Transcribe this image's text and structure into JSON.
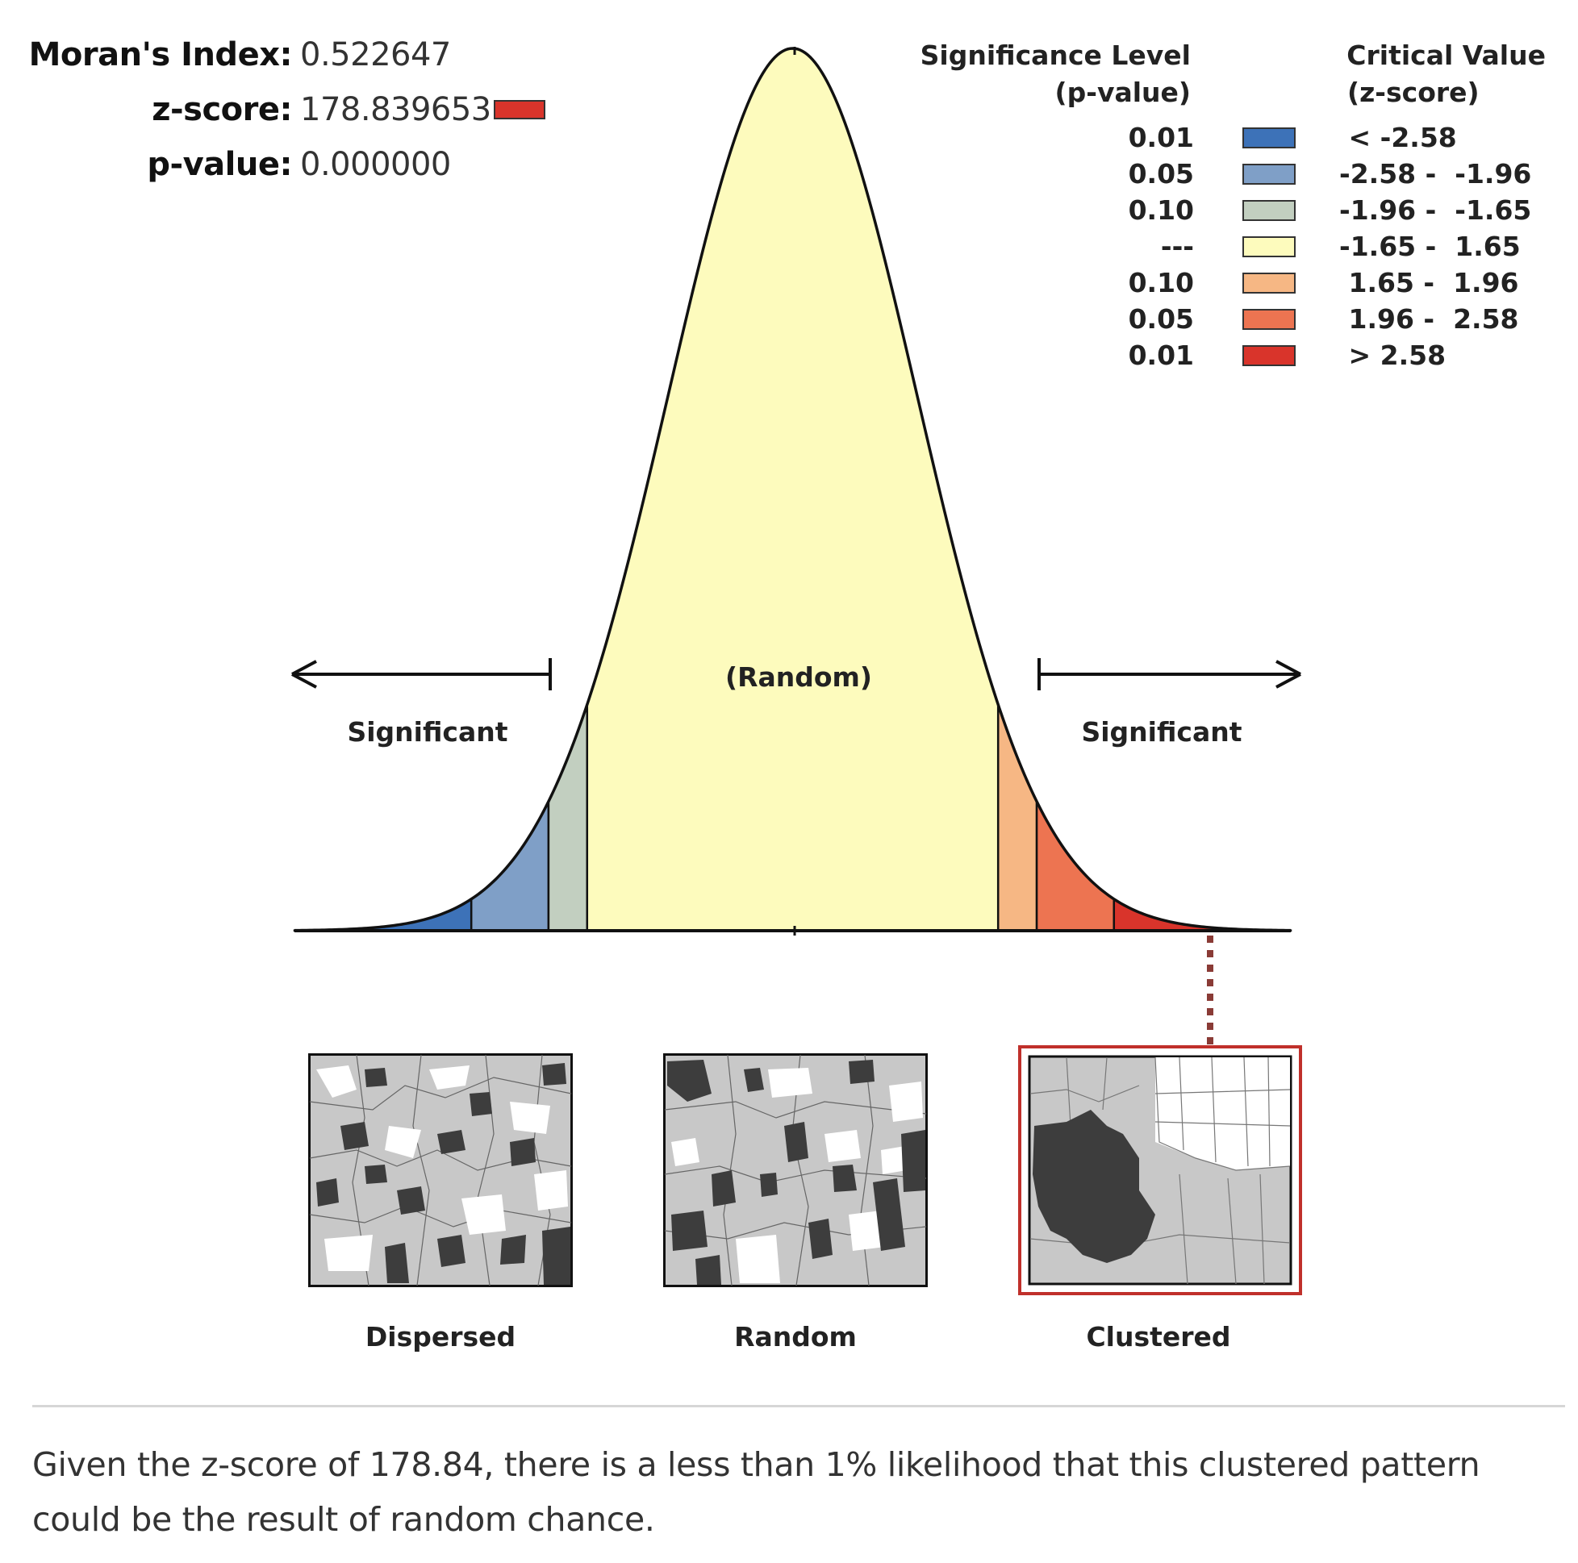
{
  "stats": {
    "index_label": "Moran's Index:",
    "index_value": "0.522647",
    "z_label": "z-score:",
    "z_value": "178.839653",
    "p_label": "p-value:",
    "p_value": "0.000000",
    "z_swatch_color": "#d9342b"
  },
  "legend": {
    "sig_header_line1": "Significance Level",
    "sig_header_line2": "(p-value)",
    "crit_header_line1": "Critical Value",
    "crit_header_line2": "(z-score)",
    "rows": [
      {
        "p": "0.01",
        "crit": " < -2.58",
        "color": "#3d72b8"
      },
      {
        "p": "0.05",
        "crit": "-2.58 -  -1.96",
        "color": "#7f9fc7"
      },
      {
        "p": "0.10",
        "crit": "-1.96 -  -1.65",
        "color": "#c2cfc0"
      },
      {
        "p": "---",
        "crit": "-1.65 -  1.65",
        "color": "#fdfbbd"
      },
      {
        "p": "0.10",
        "crit": " 1.65 -  1.96",
        "color": "#f6b784"
      },
      {
        "p": "0.05",
        "crit": " 1.96 -  2.58",
        "color": "#ed7451"
      },
      {
        "p": "0.01",
        "crit": " > 2.58",
        "color": "#d9342b"
      }
    ]
  },
  "chart_data": {
    "type": "area",
    "title": "",
    "xlabel": "",
    "ylabel": "",
    "distribution": "standard normal",
    "xlim": [
      -4,
      4
    ],
    "bands": [
      {
        "from": -4.0,
        "to": -2.58,
        "color": "#3d72b8",
        "p": "0.01"
      },
      {
        "from": -2.58,
        "to": -1.96,
        "color": "#7f9fc7",
        "p": "0.05"
      },
      {
        "from": -1.96,
        "to": -1.65,
        "color": "#c2cfc0",
        "p": "0.10"
      },
      {
        "from": -1.65,
        "to": 1.65,
        "color": "#fdfbbd",
        "p": "---"
      },
      {
        "from": 1.65,
        "to": 1.96,
        "color": "#f6b784",
        "p": "0.10"
      },
      {
        "from": 1.96,
        "to": 2.58,
        "color": "#ed7451",
        "p": "0.05"
      },
      {
        "from": 2.58,
        "to": 4.0,
        "color": "#d9342b",
        "p": "0.01"
      }
    ],
    "annotations": {
      "center": "(Random)",
      "left": "Significant",
      "right": "Significant"
    },
    "result_marker_band": "> 2.58"
  },
  "patterns": {
    "dispersed": "Dispersed",
    "random": "Random",
    "clustered": "Clustered",
    "highlight_color": "#c0302b"
  },
  "summary": "Given the z-score of 178.84, there is a less than 1% likelihood that this clustered pattern could be the result of random chance."
}
